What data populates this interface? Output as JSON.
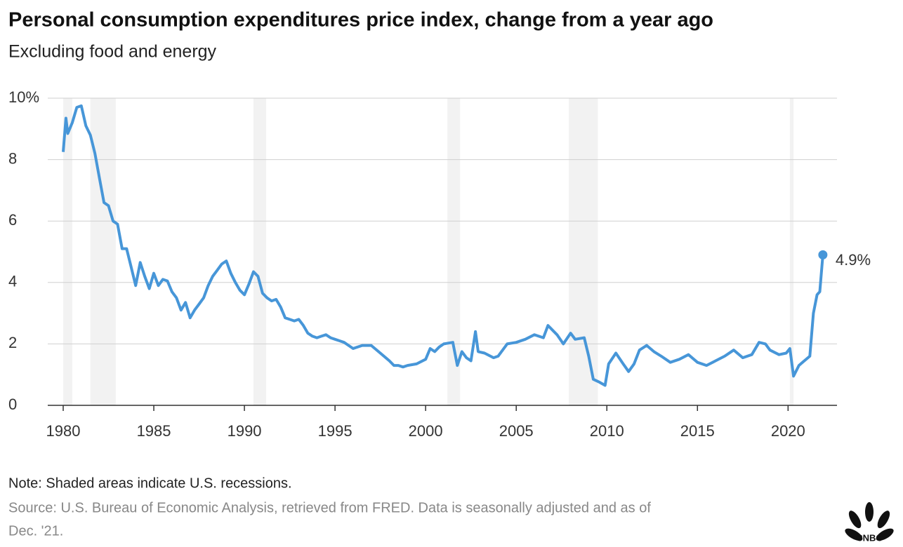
{
  "chart_data": {
    "type": "line",
    "title": "Personal consumption expenditures price index, change from a year ago",
    "subtitle": "Excluding food and energy",
    "note": "Note: Shaded areas indicate U.S. recessions.",
    "source": [
      "Source: U.S. Bureau of Economic Analysis, retrieved from FRED. Data is seasonally adjusted and as of",
      "Dec. '21."
    ],
    "logo": "CNBC",
    "color": "#4796d8",
    "recession_color": "#f2f2f2",
    "grid": true,
    "xlim": [
      1980,
      2022.7
    ],
    "ylim": [
      0,
      10
    ],
    "xticks": [
      1980,
      1985,
      1990,
      1995,
      2000,
      2005,
      2010,
      2015,
      2020
    ],
    "yticks": [
      0,
      2,
      4,
      6,
      8,
      {
        "value": 10,
        "label": "10%"
      }
    ],
    "recessions": [
      [
        1980.0,
        1980.5
      ],
      [
        1981.5,
        1982.9
      ],
      [
        1990.5,
        1991.2
      ],
      [
        2001.2,
        2001.9
      ],
      [
        2007.9,
        2009.5
      ],
      [
        2020.1,
        2020.3
      ]
    ],
    "x": [
      1980.0,
      1980.15,
      1980.25,
      1980.5,
      1980.75,
      1981.0,
      1981.25,
      1981.5,
      1981.75,
      1982.0,
      1982.25,
      1982.5,
      1982.75,
      1983.0,
      1983.25,
      1983.5,
      1983.75,
      1984.0,
      1984.25,
      1984.5,
      1984.75,
      1985.0,
      1985.25,
      1985.5,
      1985.75,
      1986.0,
      1986.25,
      1986.5,
      1986.75,
      1987.0,
      1987.25,
      1987.5,
      1987.75,
      1988.0,
      1988.25,
      1988.5,
      1988.75,
      1989.0,
      1989.25,
      1989.5,
      1989.75,
      1990.0,
      1990.25,
      1990.5,
      1990.75,
      1991.0,
      1991.25,
      1991.5,
      1991.75,
      1992.0,
      1992.25,
      1992.5,
      1992.75,
      1993.0,
      1993.25,
      1993.5,
      1993.75,
      1994.0,
      1994.25,
      1994.5,
      1994.75,
      1995.0,
      1995.25,
      1995.5,
      1995.75,
      1996.0,
      1996.5,
      1997.0,
      1997.5,
      1998.0,
      1998.25,
      1998.5,
      1998.75,
      1999.0,
      1999.5,
      2000.0,
      2000.25,
      2000.5,
      2000.75,
      2001.0,
      2001.5,
      2001.75,
      2002.0,
      2002.25,
      2002.5,
      2002.75,
      2002.9,
      2003.25,
      2003.75,
      2004.0,
      2004.5,
      2005.0,
      2005.5,
      2006.0,
      2006.5,
      2006.75,
      2007.0,
      2007.25,
      2007.6,
      2008.0,
      2008.25,
      2008.75,
      2009.0,
      2009.25,
      2009.6,
      2009.9,
      2010.1,
      2010.5,
      2010.9,
      2011.2,
      2011.5,
      2011.8,
      2012.2,
      2012.6,
      2013.0,
      2013.5,
      2014.0,
      2014.5,
      2015.0,
      2015.5,
      2016.0,
      2016.5,
      2017.0,
      2017.5,
      2018.0,
      2018.4,
      2018.75,
      2019.0,
      2019.5,
      2019.9,
      2020.1,
      2020.3,
      2020.6,
      2020.9,
      2021.2,
      2021.4,
      2021.6,
      2021.75,
      2021.92
    ],
    "values": [
      8.25,
      9.35,
      8.85,
      9.2,
      9.7,
      9.75,
      9.1,
      8.8,
      8.2,
      7.4,
      6.6,
      6.5,
      6.0,
      5.9,
      5.1,
      5.1,
      4.5,
      3.9,
      4.65,
      4.2,
      3.8,
      4.3,
      3.9,
      4.1,
      4.05,
      3.7,
      3.5,
      3.1,
      3.35,
      2.85,
      3.1,
      3.3,
      3.5,
      3.9,
      4.2,
      4.4,
      4.6,
      4.7,
      4.3,
      4.0,
      3.75,
      3.6,
      3.95,
      4.35,
      4.2,
      3.65,
      3.5,
      3.4,
      3.45,
      3.2,
      2.85,
      2.8,
      2.75,
      2.8,
      2.6,
      2.35,
      2.25,
      2.2,
      2.25,
      2.3,
      2.2,
      2.15,
      2.1,
      2.05,
      1.95,
      1.85,
      1.95,
      1.95,
      1.7,
      1.45,
      1.3,
      1.3,
      1.25,
      1.3,
      1.35,
      1.5,
      1.85,
      1.75,
      1.9,
      2.0,
      2.05,
      1.3,
      1.75,
      1.55,
      1.45,
      2.4,
      1.75,
      1.7,
      1.55,
      1.6,
      2.0,
      2.05,
      2.15,
      2.3,
      2.2,
      2.6,
      2.45,
      2.3,
      2.0,
      2.35,
      2.15,
      2.2,
      1.6,
      0.85,
      0.75,
      0.65,
      1.35,
      1.7,
      1.35,
      1.1,
      1.35,
      1.8,
      1.95,
      1.75,
      1.6,
      1.4,
      1.5,
      1.65,
      1.4,
      1.3,
      1.45,
      1.6,
      1.8,
      1.55,
      1.65,
      2.05,
      2.0,
      1.8,
      1.65,
      1.7,
      1.85,
      0.95,
      1.3,
      1.45,
      1.6,
      3.0,
      3.6,
      3.7,
      4.9
    ],
    "annotations": [
      {
        "x": 2021.92,
        "y": 4.9,
        "label": "4.9%"
      }
    ]
  }
}
